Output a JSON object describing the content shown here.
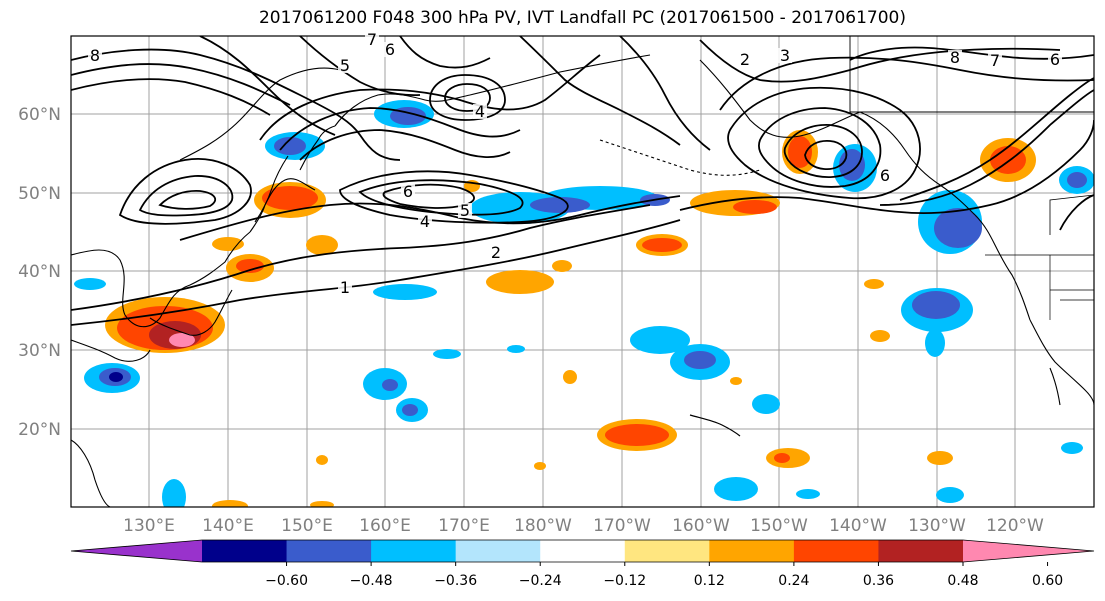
{
  "title": "2017061200 F048 300 hPa PV, IVT Landfall PC (2017061500 - 2017061700)",
  "lat_labels": [
    "60°N",
    "50°N",
    "40°N",
    "30°N",
    "20°N"
  ],
  "lon_labels": [
    "130°E",
    "140°E",
    "150°E",
    "160°E",
    "170°E",
    "180°W",
    "170°W",
    "160°W",
    "150°W",
    "140°W",
    "130°W",
    "120°W"
  ],
  "colorbar": {
    "colors": [
      "#9932cc",
      "#00008b",
      "#3a5ccc",
      "#00bfff",
      "#b3e5fc",
      "#ffffff",
      "#ffe680",
      "#ffa500",
      "#ff4500",
      "#b22222",
      "#ff88b0"
    ],
    "tick_labels": [
      "−0.60",
      "−0.48",
      "−0.36",
      "−0.24",
      "−0.12",
      "0.12",
      "0.24",
      "0.36",
      "0.48",
      "0.60"
    ]
  },
  "contour_labels": [
    "1",
    "2",
    "2",
    "3",
    "4",
    "4",
    "5",
    "5",
    "6",
    "6",
    "6",
    "6",
    "7",
    "7",
    "8",
    "8"
  ]
}
